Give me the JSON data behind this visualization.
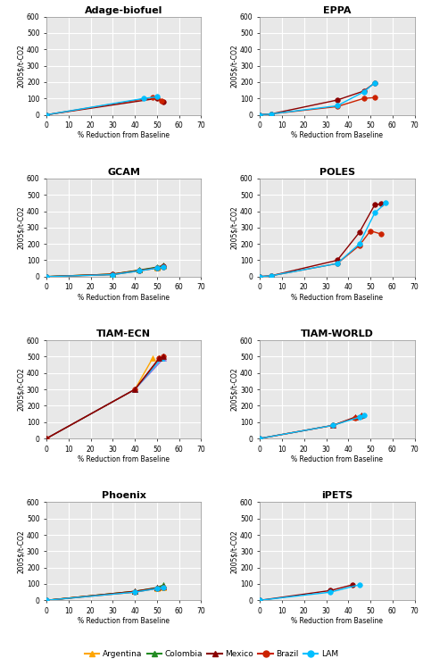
{
  "panels": [
    {
      "title": "Adage-biofuel",
      "series": {
        "Argentina": {
          "x": [],
          "y": [],
          "color": "#FFA500",
          "marker": "^"
        },
        "Colombia": {
          "x": [],
          "y": [],
          "color": "#228B22",
          "marker": "^"
        },
        "Mexico": {
          "x": [
            0,
            50,
            53
          ],
          "y": [
            0,
            100,
            80
          ],
          "color": "#8B0000",
          "marker": "o"
        },
        "Brazil": {
          "x": [
            0,
            48,
            52
          ],
          "y": [
            0,
            105,
            85
          ],
          "color": "#CC2200",
          "marker": "o"
        },
        "LAM": {
          "x": [
            0,
            44,
            50
          ],
          "y": [
            0,
            100,
            110
          ],
          "color": "#00BFFF",
          "marker": "o"
        }
      }
    },
    {
      "title": "EPPA",
      "series": {
        "Argentina": {
          "x": [],
          "y": [],
          "color": "#FFA500",
          "marker": "^"
        },
        "Colombia": {
          "x": [],
          "y": [],
          "color": "#228B22",
          "marker": "^"
        },
        "Mexico": {
          "x": [
            0,
            5,
            35,
            47,
            52
          ],
          "y": [
            0,
            5,
            90,
            145,
            195
          ],
          "color": "#8B0000",
          "marker": "o"
        },
        "Brazil": {
          "x": [
            0,
            5,
            35,
            47,
            52
          ],
          "y": [
            0,
            5,
            50,
            100,
            105
          ],
          "color": "#CC2200",
          "marker": "o"
        },
        "LAM": {
          "x": [
            0,
            5,
            35,
            47,
            52
          ],
          "y": [
            0,
            5,
            55,
            140,
            195
          ],
          "color": "#00BFFF",
          "marker": "o"
        }
      }
    },
    {
      "title": "GCAM",
      "series": {
        "Argentina": {
          "x": [
            0,
            30,
            42,
            50,
            53
          ],
          "y": [
            0,
            15,
            40,
            55,
            65
          ],
          "color": "#FFA500",
          "marker": "^"
        },
        "Colombia": {
          "x": [
            0,
            30,
            42,
            50,
            53
          ],
          "y": [
            0,
            15,
            40,
            58,
            70
          ],
          "color": "#228B22",
          "marker": "^"
        },
        "Mexico": {
          "x": [
            0,
            30,
            42,
            50,
            53
          ],
          "y": [
            0,
            15,
            38,
            55,
            65
          ],
          "color": "#8B0000",
          "marker": "o"
        },
        "Brazil": {
          "x": [
            0,
            30,
            42,
            50,
            53
          ],
          "y": [
            0,
            12,
            35,
            52,
            60
          ],
          "color": "#CC2200",
          "marker": "o"
        },
        "LAM": {
          "x": [
            0,
            30,
            42,
            50,
            53
          ],
          "y": [
            0,
            12,
            35,
            52,
            60
          ],
          "color": "#00BFFF",
          "marker": "o"
        }
      }
    },
    {
      "title": "POLES",
      "series": {
        "Argentina": {
          "x": [],
          "y": [],
          "color": "#FFA500",
          "marker": "^"
        },
        "Colombia": {
          "x": [],
          "y": [],
          "color": "#228B22",
          "marker": "^"
        },
        "Mexico": {
          "x": [
            0,
            5,
            35,
            45,
            52,
            55
          ],
          "y": [
            0,
            5,
            100,
            270,
            440,
            445
          ],
          "color": "#8B0000",
          "marker": "o"
        },
        "Brazil": {
          "x": [
            0,
            5,
            35,
            45,
            50,
            55
          ],
          "y": [
            0,
            5,
            80,
            190,
            280,
            260
          ],
          "color": "#CC2200",
          "marker": "o"
        },
        "LAM": {
          "x": [
            0,
            5,
            35,
            45,
            52,
            57
          ],
          "y": [
            0,
            5,
            80,
            200,
            390,
            450
          ],
          "color": "#00BFFF",
          "marker": "o"
        }
      }
    },
    {
      "title": "TIAM-ECN",
      "series": {
        "Argentina": {
          "x": [
            0,
            40,
            48
          ],
          "y": [
            0,
            300,
            490
          ],
          "color": "#FFA500",
          "marker": "^"
        },
        "Colombia": {
          "x": [
            0,
            40,
            53
          ],
          "y": [
            0,
            300,
            490
          ],
          "color": "#9370DB",
          "marker": "^"
        },
        "Mexico": {
          "x": [
            0,
            40,
            52
          ],
          "y": [
            0,
            300,
            490
          ],
          "color": "#00BFFF",
          "marker": "^"
        },
        "Brazil": {
          "x": [
            0,
            40,
            51,
            53
          ],
          "y": [
            0,
            300,
            490,
            500
          ],
          "color": "#CC2200",
          "marker": "o"
        },
        "LAM": {
          "x": [
            0,
            40,
            51,
            53
          ],
          "y": [
            0,
            300,
            490,
            500
          ],
          "color": "#8B0000",
          "marker": "^"
        }
      }
    },
    {
      "title": "TIAM-WORLD",
      "series": {
        "Argentina": {
          "x": [],
          "y": [],
          "color": "#FFA500",
          "marker": "^"
        },
        "Colombia": {
          "x": [],
          "y": [],
          "color": "#228B22",
          "marker": "^"
        },
        "Mexico": {
          "x": [
            0,
            33,
            43,
            46
          ],
          "y": [
            0,
            80,
            130,
            140
          ],
          "color": "#8B0000",
          "marker": "^"
        },
        "Brazil": {
          "x": [
            0,
            33,
            43,
            46
          ],
          "y": [
            0,
            80,
            125,
            135
          ],
          "color": "#CC2200",
          "marker": "o"
        },
        "LAM": {
          "x": [
            0,
            33,
            45,
            47
          ],
          "y": [
            0,
            80,
            130,
            140
          ],
          "color": "#00BFFF",
          "marker": "o"
        }
      }
    },
    {
      "title": "Phoenix",
      "series": {
        "Argentina": {
          "x": [
            0,
            40,
            50,
            53
          ],
          "y": [
            0,
            55,
            75,
            80
          ],
          "color": "#FFA500",
          "marker": "^"
        },
        "Colombia": {
          "x": [
            0,
            40,
            50,
            53
          ],
          "y": [
            0,
            55,
            78,
            95
          ],
          "color": "#228B22",
          "marker": "^"
        },
        "Mexico": {
          "x": [
            0,
            40,
            50,
            53
          ],
          "y": [
            0,
            55,
            76,
            82
          ],
          "color": "#8B0000",
          "marker": "^"
        },
        "Brazil": {
          "x": [
            0,
            40,
            50,
            53
          ],
          "y": [
            0,
            50,
            72,
            80
          ],
          "color": "#CC2200",
          "marker": "o"
        },
        "LAM": {
          "x": [
            0,
            40,
            50,
            53
          ],
          "y": [
            0,
            50,
            72,
            80
          ],
          "color": "#00BFFF",
          "marker": "o"
        }
      }
    },
    {
      "title": "iPETS",
      "series": {
        "Argentina": {
          "x": [],
          "y": [],
          "color": "#FFA500",
          "marker": "^"
        },
        "Colombia": {
          "x": [],
          "y": [],
          "color": "#228B22",
          "marker": "^"
        },
        "Mexico": {
          "x": [
            0,
            32,
            42
          ],
          "y": [
            0,
            60,
            95
          ],
          "color": "#8B0000",
          "marker": "o"
        },
        "Brazil": {
          "x": [],
          "y": [],
          "color": "#CC2200",
          "marker": "o"
        },
        "LAM": {
          "x": [
            0,
            32,
            45
          ],
          "y": [
            0,
            50,
            95
          ],
          "color": "#00BFFF",
          "marker": "o"
        }
      }
    }
  ],
  "ylim": [
    0,
    600
  ],
  "xlim": [
    0,
    70
  ],
  "xticks": [
    0,
    10,
    20,
    30,
    40,
    50,
    60,
    70
  ],
  "yticks": [
    0,
    100,
    200,
    300,
    400,
    500,
    600
  ],
  "xlabel": "% Reduction from Baseline",
  "ylabel": "2005$/t-CO2",
  "legend": [
    {
      "label": "Argentina",
      "color": "#FFA500",
      "marker": "^"
    },
    {
      "label": "Colombia",
      "color": "#228B22",
      "marker": "^"
    },
    {
      "label": "Mexico",
      "color": "#8B0000",
      "marker": "^"
    },
    {
      "label": "Brazil",
      "color": "#CC2200",
      "marker": "o"
    },
    {
      "label": "LAM",
      "color": "#00BFFF",
      "marker": "o"
    }
  ],
  "bg_color": "#e8e8e8",
  "grid_color": "#ffffff",
  "fig_bg": "#ffffff"
}
